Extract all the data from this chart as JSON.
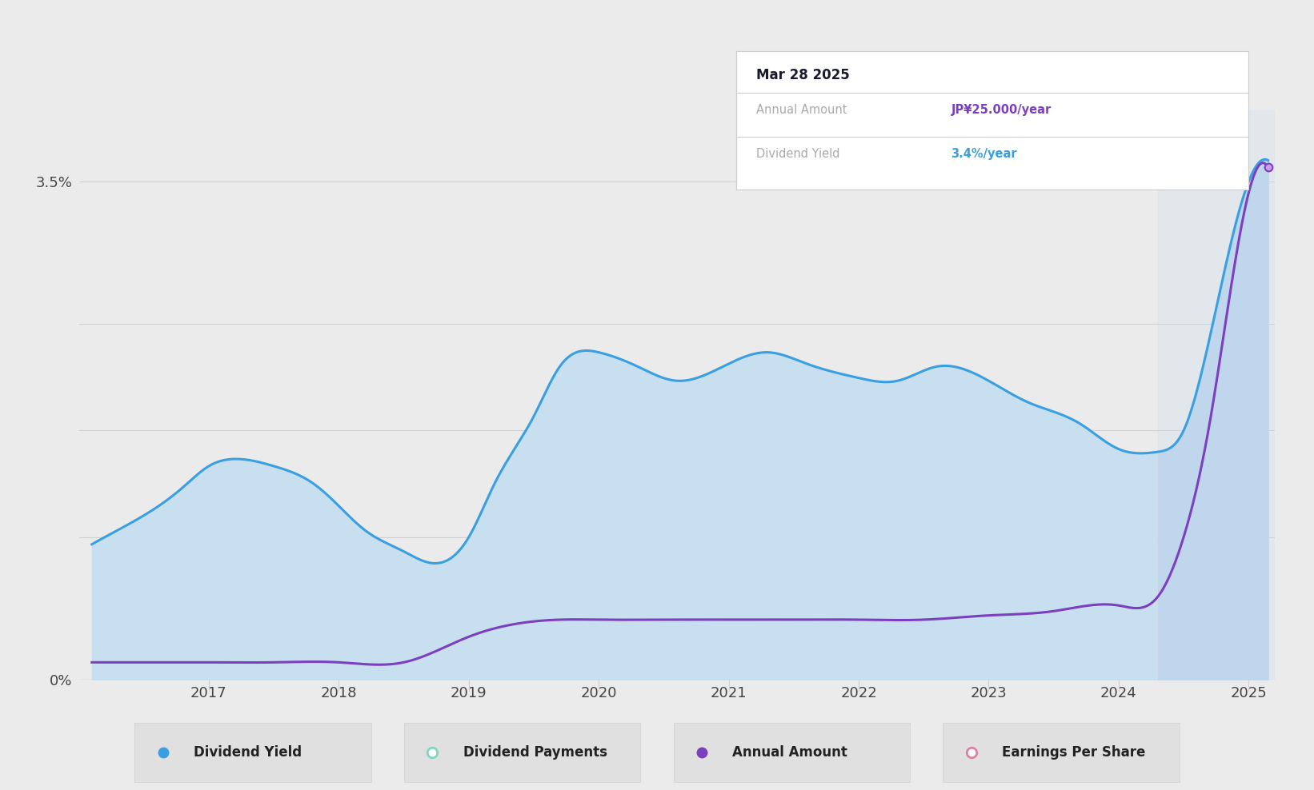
{
  "background_color": "#ebebeb",
  "plot_bg_color": "#ebebeb",
  "line_color_blue": "#3a9fe0",
  "line_color_purple": "#7b3fbf",
  "grid_color": "#d0d0d0",
  "ylim": [
    0,
    4.0
  ],
  "past_start_x": 2024.3,
  "tooltip": {
    "title": "Mar 28 2025",
    "rows": [
      {
        "label": "Annual Amount",
        "value": "JP¥25.000/year",
        "value_color": "#7b3fbf"
      },
      {
        "label": "Dividend Yield",
        "value": "3.4%/year",
        "value_color": "#3a9fe0"
      }
    ]
  },
  "dividend_yield_x": [
    2016.1,
    2016.4,
    2016.8,
    2017.0,
    2017.2,
    2017.5,
    2017.8,
    2018.0,
    2018.2,
    2018.5,
    2018.7,
    2019.0,
    2019.2,
    2019.5,
    2019.7,
    2020.0,
    2020.3,
    2020.6,
    2021.0,
    2021.3,
    2021.6,
    2022.0,
    2022.3,
    2022.6,
    2023.0,
    2023.3,
    2023.7,
    2024.0,
    2024.3,
    2024.5,
    2024.7,
    2025.0,
    2025.15
  ],
  "dividend_yield_y": [
    0.95,
    1.1,
    1.35,
    1.5,
    1.55,
    1.5,
    1.38,
    1.22,
    1.05,
    0.9,
    0.82,
    1.0,
    1.38,
    1.85,
    2.2,
    2.3,
    2.2,
    2.1,
    2.22,
    2.3,
    2.22,
    2.12,
    2.1,
    2.2,
    2.1,
    1.95,
    1.8,
    1.62,
    1.6,
    1.75,
    2.4,
    3.5,
    3.65
  ],
  "annual_amount_x": [
    2016.1,
    2016.5,
    2017.0,
    2017.5,
    2018.0,
    2018.5,
    2019.0,
    2019.3,
    2019.7,
    2020.0,
    2020.5,
    2021.0,
    2021.5,
    2022.0,
    2022.5,
    2023.0,
    2023.5,
    2024.0,
    2024.3,
    2024.5,
    2024.7,
    2025.0,
    2025.15
  ],
  "annual_amount_y": [
    0.12,
    0.12,
    0.12,
    0.12,
    0.12,
    0.12,
    0.3,
    0.38,
    0.42,
    0.42,
    0.42,
    0.42,
    0.42,
    0.42,
    0.42,
    0.45,
    0.48,
    0.52,
    0.58,
    1.0,
    1.8,
    3.42,
    3.6
  ],
  "legend_items": [
    {
      "label": "Dividend Yield",
      "color": "#3a9fe0",
      "filled": true
    },
    {
      "label": "Dividend Payments",
      "color": "#7fd6c0",
      "filled": false
    },
    {
      "label": "Annual Amount",
      "color": "#7b3fbf",
      "filled": true
    },
    {
      "label": "Earnings Per Share",
      "color": "#e080a8",
      "filled": false
    }
  ],
  "xlabel_ticks": [
    2017,
    2018,
    2019,
    2020,
    2021,
    2022,
    2023,
    2024,
    2025
  ],
  "xmin": 2016.0,
  "xmax": 2025.2
}
